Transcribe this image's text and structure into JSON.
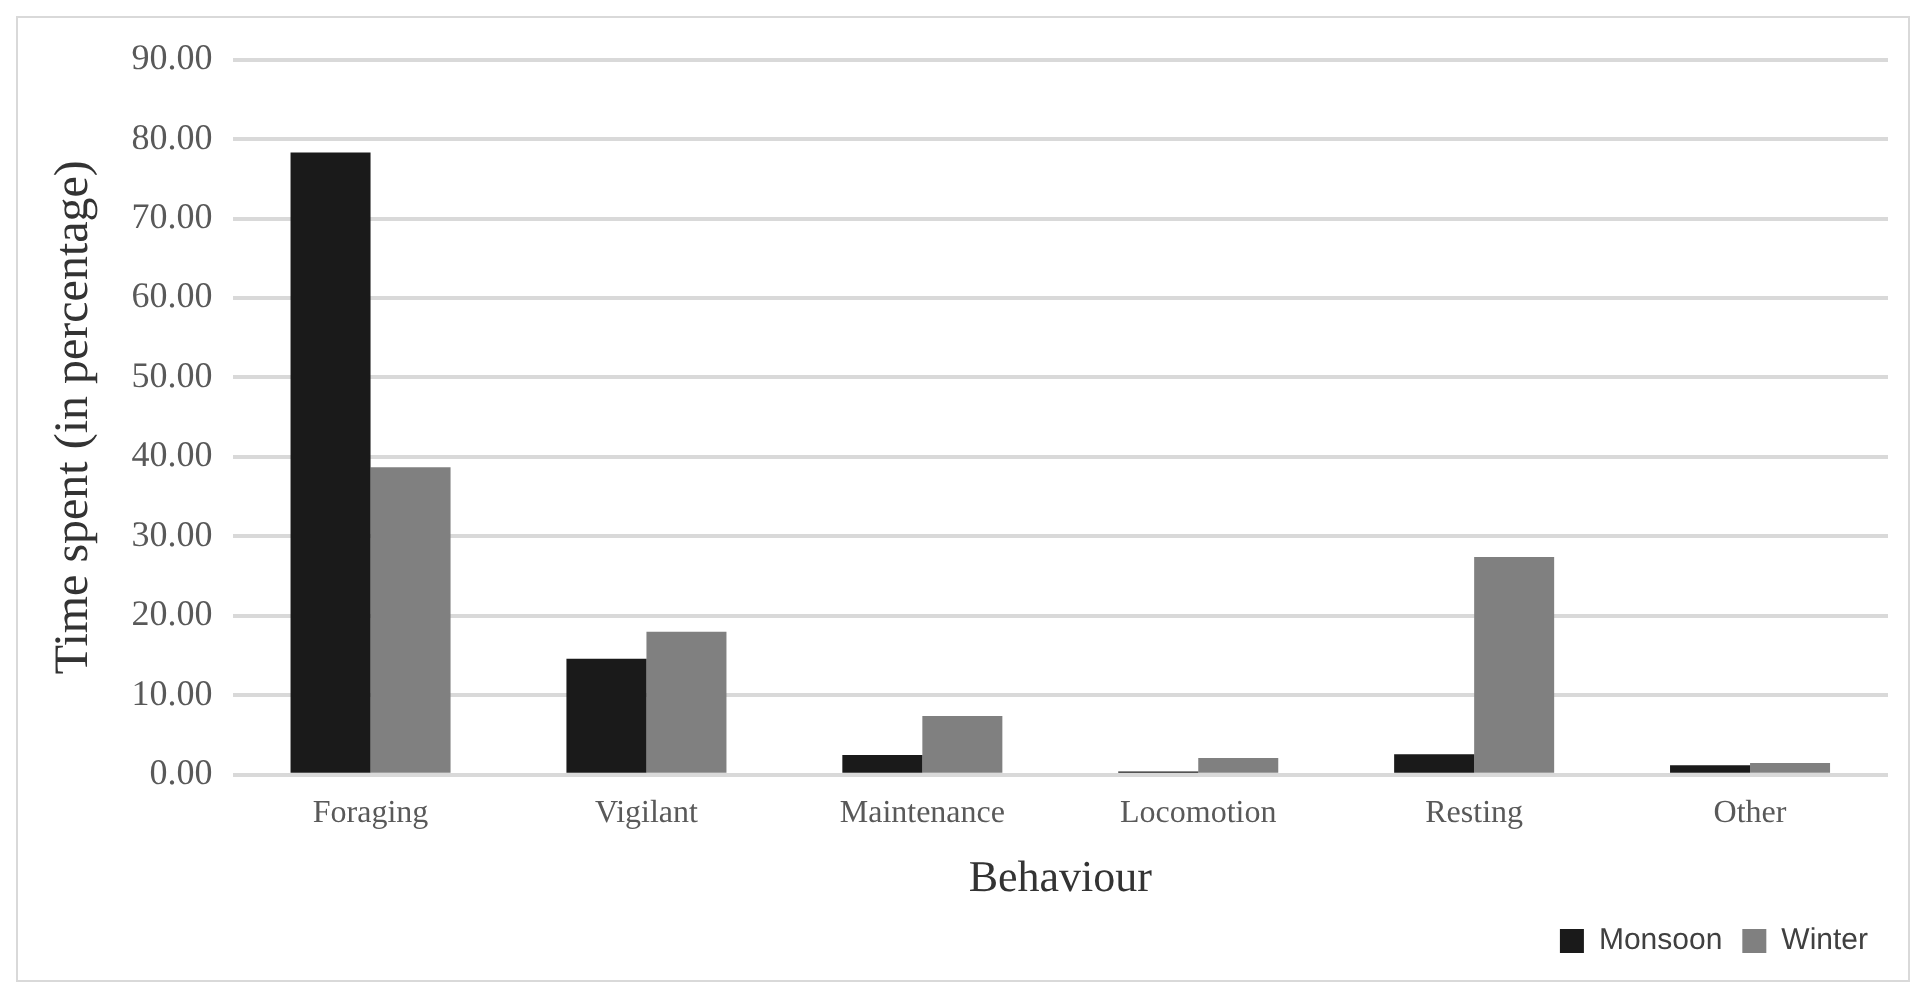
{
  "chart_data": {
    "type": "bar",
    "xlabel": "Behaviour",
    "ylabel": "Time spent (in percentage)",
    "categories": [
      "Foraging",
      "Vigilant",
      "Maintenance",
      "Locomotion",
      "Resting",
      "Other"
    ],
    "series": [
      {
        "name": "Monsoon",
        "color": "#1a1a1a",
        "values": [
          78.3,
          14.6,
          2.5,
          0.4,
          2.6,
          1.2
        ]
      },
      {
        "name": "Winter",
        "color": "#808080",
        "values": [
          38.7,
          18.0,
          7.4,
          2.1,
          27.4,
          1.5
        ]
      }
    ],
    "ylim": [
      0,
      90
    ],
    "yticks": [
      {
        "value": 0,
        "label": "0.00"
      },
      {
        "value": 10,
        "label": "10.00"
      },
      {
        "value": 20,
        "label": "20.00"
      },
      {
        "value": 30,
        "label": "30.00"
      },
      {
        "value": 40,
        "label": "40.00"
      },
      {
        "value": 50,
        "label": "50.00"
      },
      {
        "value": 60,
        "label": "60.00"
      },
      {
        "value": 70,
        "label": "70.00"
      },
      {
        "value": 80,
        "label": "80.00"
      },
      {
        "value": 90,
        "label": "90.00"
      }
    ],
    "grid": "y",
    "legend": "bottom right"
  }
}
